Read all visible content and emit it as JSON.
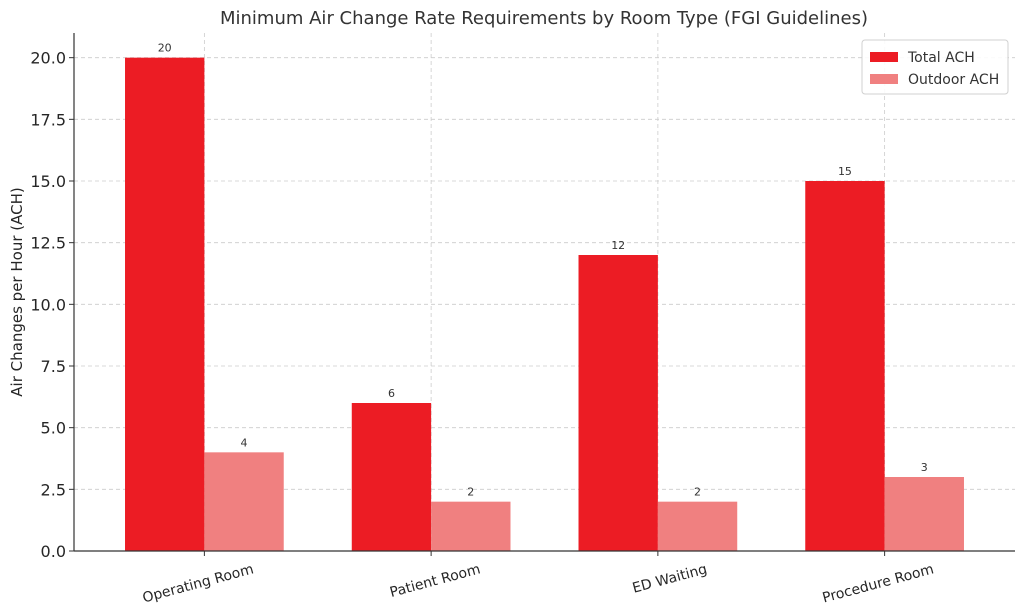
{
  "chart_data": {
    "type": "bar",
    "title": "Minimum Air Change Rate Requirements by Room Type (FGI Guidelines)",
    "xlabel": "",
    "ylabel": "Air Changes per Hour (ACH)",
    "ylim": [
      0,
      21
    ],
    "yticks": [
      "0.0",
      "2.5",
      "5.0",
      "7.5",
      "10.0",
      "12.5",
      "15.0",
      "17.5",
      "20.0"
    ],
    "ytick_values": [
      0,
      2.5,
      5,
      7.5,
      10,
      12.5,
      15,
      17.5,
      20
    ],
    "categories": [
      "Operating Room",
      "Patient Room",
      "ED Waiting",
      "Procedure Room"
    ],
    "series": [
      {
        "name": "Total ACH",
        "color": "#ec1c24",
        "values": [
          20,
          6,
          12,
          15
        ]
      },
      {
        "name": "Outdoor ACH",
        "color": "#f08080",
        "values": [
          4,
          2,
          2,
          3
        ]
      }
    ],
    "grid": true,
    "legend_position": "top-right"
  }
}
